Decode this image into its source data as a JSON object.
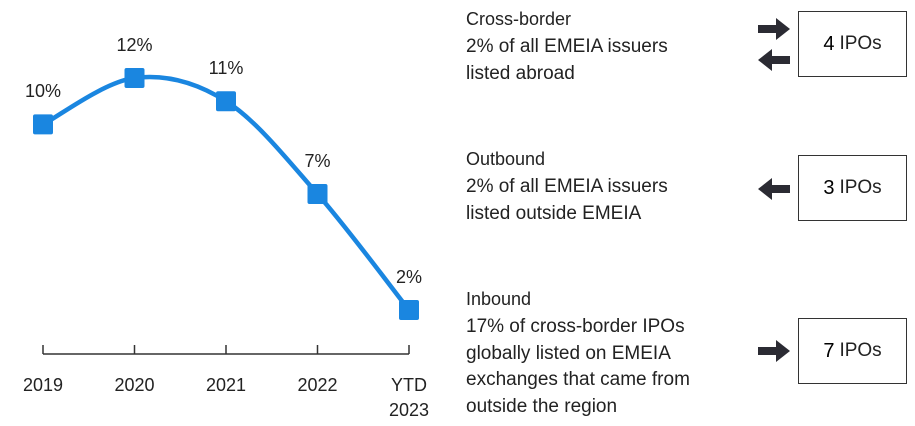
{
  "chart_data": {
    "type": "line",
    "categories": [
      "2019",
      "2020",
      "2021",
      "2022",
      "YTD 2023"
    ],
    "values": [
      10,
      12,
      11,
      7,
      2
    ],
    "value_labels": [
      "10%",
      "12%",
      "11%",
      "7%",
      "2%"
    ],
    "color": "#1a86e0",
    "ylim": [
      0,
      14
    ]
  },
  "panels": [
    {
      "title": "Cross-border",
      "lines": [
        "2% of all EMEIA issuers",
        "listed abroad"
      ],
      "count": 4,
      "unit": "IPOs"
    },
    {
      "title": "Outbound",
      "lines": [
        "2% of all EMEIA issuers",
        "listed outside EMEIA"
      ],
      "count": 3,
      "unit": "IPOs"
    },
    {
      "title": "Inbound",
      "lines": [
        "17% of cross-border IPOs",
        "globally listed on EMEIA",
        "exchanges that came from",
        "outside the region"
      ],
      "count": 7,
      "unit": "IPOs"
    }
  ]
}
